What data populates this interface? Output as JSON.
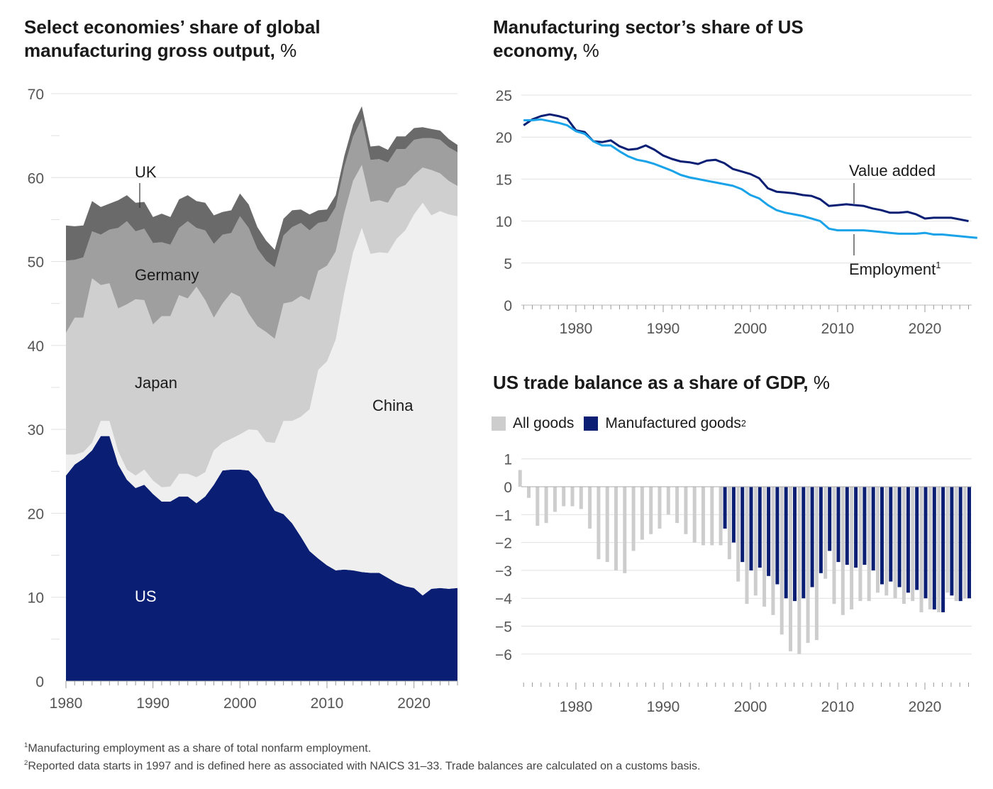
{
  "titles": {
    "left": "Select economies’ share of global manufacturing gross output,",
    "left_unit": "%",
    "right": "Manufacturing sector’s share of US economy,",
    "right_unit": "%",
    "trade": "US trade balance as a share of GDP,",
    "trade_unit": "%"
  },
  "legend": {
    "all_goods": "All goods",
    "manufactured_goods": "Manufactured goods",
    "manufactured_sup": "2"
  },
  "footnotes": {
    "n1_mark": "1",
    "n1": "Manufacturing employment as a share of total nonfarm employment.",
    "n2_mark": "2",
    "n2": "Reported data starts in 1997 and is defined here as associated with NAICS 31–33. Trade balances are calculated on a customs basis."
  },
  "colors": {
    "us": "#0a1f74",
    "china": "#efefef",
    "japan": "#cfcfcf",
    "germany": "#9f9f9f",
    "uk": "#6a6a6a",
    "value_added": "#0a1f74",
    "employment": "#1aa3e8",
    "all_goods": "#cdcdcd",
    "manufactured_goods": "#0a1f74",
    "grid": "#e0e0e0"
  },
  "chart_data": [
    {
      "type": "area",
      "stacked": true,
      "title": "Select economies’ share of global manufacturing gross output, %",
      "ylim": [
        0,
        70
      ],
      "yticks": [
        0,
        10,
        20,
        30,
        40,
        50,
        60,
        70
      ],
      "xlim": [
        1979.5,
        2025.5
      ],
      "xticks": [
        1980,
        1990,
        2000,
        2010,
        2020
      ],
      "grid": true,
      "x": [
        1980,
        1981,
        1982,
        1983,
        1984,
        1985,
        1986,
        1987,
        1988,
        1989,
        1990,
        1991,
        1992,
        1993,
        1994,
        1995,
        1996,
        1997,
        1998,
        1999,
        2000,
        2001,
        2002,
        2003,
        2004,
        2005,
        2006,
        2007,
        2008,
        2009,
        2010,
        2011,
        2012,
        2013,
        2014,
        2015,
        2016,
        2017,
        2018,
        2019,
        2020,
        2021,
        2022,
        2023,
        2024,
        2025
      ],
      "series": [
        {
          "name": "US",
          "values": [
            24.5,
            25.8,
            26.5,
            27.5,
            29.2,
            29.2,
            25.8,
            24.0,
            23.0,
            23.4,
            22.3,
            21.4,
            21.4,
            22.0,
            22.0,
            21.2,
            22.0,
            23.4,
            25.1,
            25.2,
            25.2,
            25.1,
            24.0,
            22.0,
            20.3,
            19.9,
            18.8,
            17.2,
            15.5,
            14.6,
            13.8,
            13.2,
            13.3,
            13.2,
            13.0,
            12.9,
            12.9,
            12.3,
            11.7,
            11.3,
            11.1,
            10.2,
            11.0,
            11.1,
            11.0,
            11.1
          ]
        },
        {
          "name": "China",
          "values": [
            2.5,
            1.2,
            0.8,
            0.9,
            1.8,
            1.8,
            1.6,
            1.2,
            1.5,
            1.8,
            1.6,
            1.7,
            1.8,
            2.7,
            2.7,
            3.1,
            2.9,
            4.1,
            3.3,
            3.7,
            4.2,
            4.9,
            5.9,
            6.5,
            8.1,
            11.1,
            12.2,
            14.3,
            16.9,
            22.5,
            24.3,
            27.5,
            33.0,
            37.9,
            41.0,
            38.0,
            38.2,
            38.7,
            41.0,
            42.4,
            44.5,
            46.8,
            44.5,
            44.9,
            44.6,
            44.3
          ]
        },
        {
          "name": "Japan",
          "values": [
            14.5,
            16.3,
            16.0,
            19.6,
            16.2,
            16.4,
            17.0,
            19.7,
            21.0,
            20.2,
            18.6,
            20.4,
            20.3,
            21.3,
            20.9,
            22.7,
            20.5,
            15.8,
            16.6,
            17.4,
            16.4,
            13.8,
            12.4,
            13.1,
            12.4,
            14.0,
            14.2,
            14.4,
            13.0,
            11.8,
            11.4,
            10.5,
            9.5,
            8.5,
            7.5,
            6.2,
            6.2,
            6.0,
            6.0,
            5.4,
            4.7,
            4.2,
            5.4,
            4.5,
            4.0,
            3.6
          ]
        },
        {
          "name": "Germany",
          "values": [
            8.6,
            6.9,
            7.2,
            5.6,
            6.0,
            6.4,
            9.6,
            9.9,
            8.1,
            8.5,
            9.7,
            8.8,
            8.5,
            8.0,
            9.2,
            7.0,
            8.3,
            8.8,
            8.2,
            7.1,
            9.6,
            10.2,
            9.2,
            8.5,
            8.5,
            8.1,
            8.9,
            8.7,
            8.3,
            5.7,
            5.3,
            5.3,
            5.5,
            5.3,
            5.5,
            5.0,
            4.9,
            4.8,
            4.7,
            4.3,
            4.2,
            3.5,
            3.8,
            4.0,
            4.0,
            4.0
          ]
        },
        {
          "name": "UK",
          "values": [
            4.2,
            4.0,
            3.8,
            3.6,
            3.3,
            3.1,
            3.3,
            3.1,
            3.4,
            3.2,
            3.1,
            3.4,
            3.3,
            3.4,
            3.1,
            3.2,
            3.3,
            3.4,
            2.7,
            2.7,
            2.7,
            2.8,
            2.6,
            2.4,
            2.1,
            2.0,
            2.0,
            1.6,
            1.9,
            1.5,
            1.4,
            1.4,
            1.3,
            1.4,
            1.5,
            1.6,
            1.6,
            1.5,
            1.5,
            1.5,
            1.4,
            1.3,
            1.1,
            1.1,
            1.0,
            0.9
          ]
        }
      ],
      "labels": {
        "uk": "UK",
        "germany": "Germany",
        "japan": "Japan",
        "china": "China",
        "us": "US"
      }
    },
    {
      "type": "line",
      "title": "Manufacturing sector’s share of US economy, %",
      "ylim": [
        0,
        25
      ],
      "yticks": [
        0,
        5,
        10,
        15,
        20,
        25
      ],
      "xlim": [
        1973.5,
        2026
      ],
      "xticks": [
        1980,
        1990,
        2000,
        2010,
        2020
      ],
      "minor_xticks": [
        1974,
        2025
      ],
      "grid": true,
      "series": [
        {
          "name": "Value added",
          "x": [
            1974,
            1975,
            1976,
            1977,
            1978,
            1979,
            1980,
            1981,
            1982,
            1983,
            1984,
            1985,
            1986,
            1987,
            1988,
            1989,
            1990,
            1991,
            1992,
            1993,
            1994,
            1995,
            1996,
            1997,
            1998,
            1999,
            2000,
            2001,
            2002,
            2003,
            2004,
            2005,
            2006,
            2007,
            2008,
            2009,
            2010,
            2011,
            2012,
            2013,
            2014,
            2015,
            2016,
            2017,
            2018,
            2019,
            2020,
            2021,
            2022,
            2023,
            2024,
            2025
          ],
          "values": [
            21.4,
            22.1,
            22.5,
            22.7,
            22.5,
            22.2,
            20.8,
            20.6,
            19.5,
            19.4,
            19.6,
            18.9,
            18.5,
            18.6,
            19.0,
            18.5,
            17.8,
            17.4,
            17.1,
            17.0,
            16.8,
            17.2,
            17.3,
            16.9,
            16.2,
            15.9,
            15.6,
            15.1,
            13.9,
            13.5,
            13.4,
            13.3,
            13.1,
            13.0,
            12.6,
            11.8,
            11.9,
            12.0,
            11.9,
            11.8,
            11.5,
            11.3,
            11.0,
            11.0,
            11.1,
            10.8,
            10.3,
            10.4,
            10.4,
            10.4,
            10.2,
            10.0
          ]
        },
        {
          "name": "Employment",
          "x": [
            1974,
            1975,
            1976,
            1977,
            1978,
            1979,
            1980,
            1981,
            1982,
            1983,
            1984,
            1985,
            1986,
            1987,
            1988,
            1989,
            1990,
            1991,
            1992,
            1993,
            1994,
            1995,
            1996,
            1997,
            1998,
            1999,
            2000,
            2001,
            2002,
            2003,
            2004,
            2005,
            2006,
            2007,
            2008,
            2009,
            2010,
            2011,
            2012,
            2013,
            2014,
            2015,
            2016,
            2017,
            2018,
            2019,
            2020,
            2021,
            2022,
            2023,
            2024,
            2025,
            2026
          ],
          "values": [
            22.0,
            22.0,
            22.1,
            21.9,
            21.7,
            21.4,
            20.7,
            20.4,
            19.5,
            19.0,
            19.0,
            18.3,
            17.7,
            17.3,
            17.1,
            16.8,
            16.4,
            16.0,
            15.5,
            15.2,
            15.0,
            14.8,
            14.6,
            14.4,
            14.2,
            13.8,
            13.1,
            12.7,
            11.9,
            11.3,
            11.0,
            10.8,
            10.6,
            10.3,
            10.0,
            9.1,
            8.9,
            8.9,
            8.9,
            8.9,
            8.8,
            8.7,
            8.6,
            8.5,
            8.5,
            8.5,
            8.6,
            8.4,
            8.4,
            8.3,
            8.2,
            8.1,
            8.0
          ]
        }
      ],
      "labels": {
        "value_added": "Value added",
        "employment": "Employment",
        "employment_sup": "1"
      }
    },
    {
      "type": "bar",
      "title": "US trade balance as a share of GDP, %",
      "ylim": [
        -6.5,
        1.3
      ],
      "yticks": [
        1,
        0,
        -1,
        -2,
        -3,
        -4,
        -5,
        -6
      ],
      "xticks": [
        1980,
        1990,
        2000,
        2010,
        2020
      ],
      "xlim": [
        1973.5,
        2026
      ],
      "grid": true,
      "series": [
        {
          "name": "All goods",
          "x": [
            1974,
            1975,
            1976,
            1977,
            1978,
            1979,
            1980,
            1981,
            1982,
            1983,
            1984,
            1985,
            1986,
            1987,
            1988,
            1989,
            1990,
            1991,
            1992,
            1993,
            1994,
            1995,
            1996,
            1997,
            1998,
            1999,
            2000,
            2001,
            2002,
            2003,
            2004,
            2005,
            2006,
            2007,
            2008,
            2009,
            2010,
            2011,
            2012,
            2013,
            2014,
            2015,
            2016,
            2017,
            2018,
            2019,
            2020,
            2021,
            2022,
            2023,
            2024,
            2025
          ],
          "values": [
            0.6,
            -0.4,
            -1.4,
            -1.3,
            -0.9,
            -0.7,
            -0.7,
            -0.8,
            -1.5,
            -2.6,
            -2.7,
            -3.0,
            -3.1,
            -2.3,
            -1.9,
            -1.7,
            -1.5,
            -1.0,
            -1.3,
            -1.7,
            -2.0,
            -2.1,
            -2.1,
            -2.1,
            -2.6,
            -3.4,
            -4.2,
            -3.9,
            -4.3,
            -4.6,
            -5.3,
            -5.9,
            -6.0,
            -5.6,
            -5.5,
            -3.3,
            -4.2,
            -4.6,
            -4.4,
            -4.1,
            -4.1,
            -3.8,
            -3.9,
            -4.0,
            -4.2,
            -4.1,
            -4.5,
            -4.4,
            -4.5,
            -3.8,
            -4.1,
            -4.0
          ]
        },
        {
          "name": "Manufactured goods",
          "x": [
            1997,
            1998,
            1999,
            2000,
            2001,
            2002,
            2003,
            2004,
            2005,
            2006,
            2007,
            2008,
            2009,
            2010,
            2011,
            2012,
            2013,
            2014,
            2015,
            2016,
            2017,
            2018,
            2019,
            2020,
            2021,
            2022,
            2023,
            2024,
            2025
          ],
          "values": [
            -1.5,
            -2.0,
            -2.7,
            -3.0,
            -2.9,
            -3.2,
            -3.5,
            -4.0,
            -4.1,
            -4.0,
            -3.6,
            -3.1,
            -2.3,
            -2.7,
            -2.8,
            -2.9,
            -2.8,
            -3.0,
            -3.5,
            -3.4,
            -3.6,
            -3.8,
            -3.7,
            -4.0,
            -4.4,
            -4.5,
            -3.9,
            -4.1,
            -4.0
          ]
        }
      ]
    }
  ]
}
